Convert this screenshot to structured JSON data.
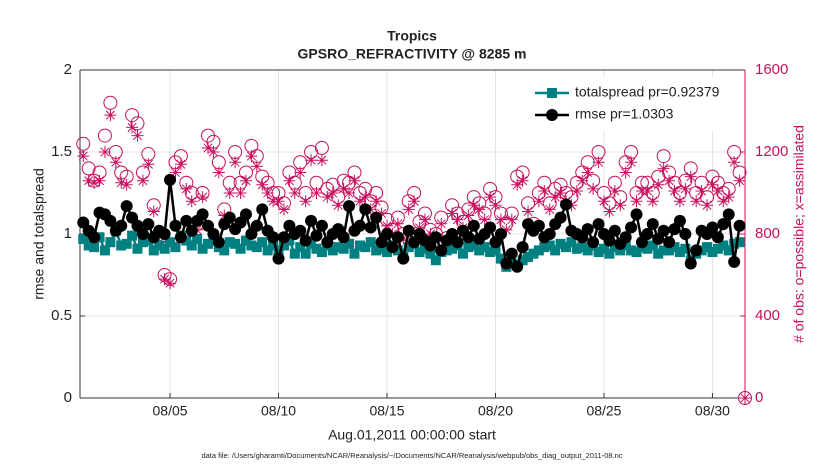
{
  "chart_data": {
    "type": "line",
    "title": "Tropics",
    "subtitle": "GPSRO_REFRACTIVITY @ 8285 m",
    "xlabel": "Aug.01,2011 00:00:00 start",
    "ylabel": "rmse and totalspread",
    "y2label": "# of obs: o=possible; x=assimilated",
    "footnote": "data file: /Users/gharamti/Documents/NCAR/Reanalysis/~/Documents/NCAR/Reanalysis/webpub/obs_diag_output_2011-08.nc",
    "xlim": [
      0.85,
      31.5
    ],
    "xticks": [
      {
        "value": 5,
        "label": "08/05"
      },
      {
        "value": 10,
        "label": "08/10"
      },
      {
        "value": 15,
        "label": "08/15"
      },
      {
        "value": 20,
        "label": "08/20"
      },
      {
        "value": 25,
        "label": "08/25"
      },
      {
        "value": 30,
        "label": "08/30"
      }
    ],
    "ylim": [
      0,
      2
    ],
    "yticks": [
      0,
      0.5,
      1,
      1.5,
      2
    ],
    "y2lim": [
      0,
      1600
    ],
    "y2ticks": [
      0,
      400,
      800,
      1200,
      1600
    ],
    "y2color": "#c8105e",
    "grid": true,
    "legend": "upper right",
    "x": [
      1,
      1.25,
      1.5,
      1.75,
      2,
      2.25,
      2.5,
      2.75,
      3,
      3.25,
      3.5,
      3.75,
      4,
      4.25,
      4.5,
      4.75,
      5,
      5.25,
      5.5,
      5.75,
      6,
      6.25,
      6.5,
      6.75,
      7,
      7.25,
      7.5,
      7.75,
      8,
      8.25,
      8.5,
      8.75,
      9,
      9.25,
      9.5,
      9.75,
      10,
      10.25,
      10.5,
      10.75,
      11,
      11.25,
      11.5,
      11.75,
      12,
      12.25,
      12.5,
      12.75,
      13,
      13.25,
      13.5,
      13.75,
      14,
      14.25,
      14.5,
      14.75,
      15,
      15.25,
      15.5,
      15.75,
      16,
      16.25,
      16.5,
      16.75,
      17,
      17.25,
      17.5,
      17.75,
      18,
      18.25,
      18.5,
      18.75,
      19,
      19.25,
      19.5,
      19.75,
      20,
      20.25,
      20.5,
      20.75,
      21,
      21.25,
      21.5,
      21.75,
      22,
      22.25,
      22.5,
      22.75,
      23,
      23.25,
      23.5,
      23.75,
      24,
      24.25,
      24.5,
      24.75,
      25,
      25.25,
      25.5,
      25.75,
      26,
      26.25,
      26.5,
      26.75,
      27,
      27.25,
      27.5,
      27.75,
      28,
      28.25,
      28.5,
      28.75,
      29,
      29.25,
      29.5,
      29.75,
      30,
      30.25,
      30.5,
      30.75,
      31,
      31.25,
      31.5
    ],
    "series": [
      {
        "marker": "open-circle",
        "line": false,
        "axis": "y2",
        "color": "#c8105e",
        "values": [
          1240,
          1120,
          1060,
          1100,
          1280,
          1440,
          1200,
          1100,
          1080,
          1380,
          1340,
          1100,
          1190,
          940,
          780,
          600,
          580,
          1150,
          1180,
          1050,
          1000,
          850,
          1000,
          1280,
          1250,
          1150,
          920,
          1050,
          1200,
          1050,
          1100,
          1230,
          1180,
          1080,
          1050,
          1000,
          1000,
          950,
          1100,
          1050,
          1150,
          1000,
          1200,
          1050,
          1220,
          1020,
          1040,
          980,
          1060,
          1050,
          1100,
          1000,
          1020,
          960,
          1000,
          930,
          870,
          820,
          880,
          800,
          960,
          1000,
          860,
          900,
          820,
          800,
          880,
          780,
          940,
          900,
          860,
          920,
          980,
          950,
          900,
          1020,
          980,
          900,
          850,
          900,
          1080,
          1100,
          950,
          850,
          1000,
          1050,
          950,
          1020,
          1040,
          1000,
          980,
          1050,
          1100,
          1150,
          1060,
          1200,
          1000,
          950,
          1050,
          980,
          1150,
          1200,
          1000,
          1050,
          1050,
          1000,
          1080,
          1180,
          1100,
          1050,
          1000,
          1060,
          1120,
          1000,
          1050,
          980,
          1080,
          1050,
          1000,
          1020,
          1200,
          1100,
          0
        ]
      },
      {
        "marker": "asterisk",
        "line": false,
        "axis": "y2",
        "color": "#c8105e",
        "values": [
          1180,
          1060,
          1050,
          1060,
          1200,
          1380,
          1150,
          1050,
          1040,
          1320,
          1280,
          1060,
          1140,
          910,
          760,
          580,
          560,
          1100,
          1140,
          1020,
          960,
          820,
          980,
          1220,
          1200,
          1100,
          890,
          1000,
          1150,
          1000,
          1060,
          1180,
          1130,
          1040,
          1000,
          960,
          960,
          920,
          1060,
          1000,
          1100,
          960,
          1160,
          1000,
          1160,
          980,
          1000,
          940,
          1020,
          1000,
          1060,
          960,
          980,
          920,
          960,
          900,
          840,
          800,
          850,
          780,
          920,
          960,
          830,
          870,
          800,
          780,
          850,
          760,
          900,
          870,
          830,
          890,
          940,
          920,
          870,
          980,
          940,
          870,
          820,
          870,
          1040,
          1060,
          910,
          820,
          960,
          1010,
          920,
          980,
          1000,
          960,
          940,
          1010,
          1060,
          1100,
          1020,
          1150,
          960,
          910,
          1010,
          940,
          1100,
          1150,
          960,
          1010,
          1010,
          960,
          1040,
          1120,
          1060,
          1010,
          960,
          1020,
          1080,
          960,
          1010,
          940,
          1040,
          1010,
          960,
          980,
          1150,
          1060,
          0
        ]
      },
      {
        "name": "totalspread pr=0.92379",
        "marker": "square",
        "line": true,
        "color": "#008080",
        "values": [
          0.97,
          0.93,
          0.92,
          0.98,
          0.9,
          0.95,
          1.02,
          0.93,
          0.94,
          0.99,
          0.91,
          0.95,
          0.96,
          0.9,
          0.93,
          0.91,
          0.95,
          0.92,
          0.99,
          0.96,
          0.93,
          0.97,
          0.91,
          0.94,
          0.96,
          0.92,
          0.9,
          0.95,
          0.94,
          0.91,
          0.96,
          0.93,
          0.92,
          0.95,
          0.9,
          0.93,
          0.9,
          0.93,
          0.96,
          0.88,
          0.92,
          0.88,
          0.94,
          0.91,
          0.89,
          0.93,
          0.9,
          0.92,
          0.91,
          0.94,
          0.88,
          0.93,
          0.92,
          0.95,
          0.9,
          0.91,
          0.89,
          0.93,
          0.9,
          0.88,
          0.92,
          0.94,
          0.89,
          0.91,
          0.88,
          0.84,
          0.89,
          0.9,
          0.91,
          0.93,
          0.88,
          0.92,
          0.93,
          0.9,
          0.92,
          0.89,
          0.9,
          0.85,
          0.8,
          0.82,
          0.81,
          0.84,
          0.86,
          0.88,
          0.9,
          0.92,
          0.93,
          0.9,
          0.94,
          0.92,
          0.95,
          0.91,
          0.92,
          0.9,
          0.93,
          0.89,
          0.91,
          0.88,
          0.92,
          0.9,
          0.93,
          0.9,
          0.89,
          0.92,
          0.91,
          0.93,
          0.88,
          0.9,
          0.9,
          0.92,
          0.89,
          0.91,
          0.84,
          0.88,
          0.9,
          0.92,
          0.89,
          0.91,
          0.93,
          0.9,
          0.94,
          0.95,
          null
        ]
      },
      {
        "name": "rmse pr=1.0303",
        "marker": "circle",
        "line": true,
        "color": "#000000",
        "values": [
          1.07,
          1.02,
          0.98,
          1.13,
          1.12,
          1.08,
          1.02,
          1.05,
          1.17,
          1.1,
          1.05,
          1.0,
          1.06,
          0.98,
          1.02,
          1.0,
          1.33,
          1.05,
          0.98,
          1.08,
          1.02,
          1.08,
          1.12,
          1.05,
          1.0,
          0.95,
          1.06,
          1.1,
          1.03,
          1.07,
          1.12,
          1.0,
          1.05,
          1.15,
          1.02,
          0.98,
          0.85,
          0.98,
          1.05,
          1.0,
          1.02,
          0.96,
          1.08,
          0.99,
          1.05,
          0.95,
          1.0,
          1.03,
          0.98,
          1.17,
          1.02,
          1.05,
          1.15,
          1.04,
          1.1,
          0.95,
          1.0,
          0.92,
          0.98,
          0.85,
          1.02,
          0.95,
          1.0,
          0.96,
          0.93,
          0.98,
          0.9,
          0.96,
          1.0,
          0.95,
          1.02,
          0.98,
          1.05,
          0.97,
          1.0,
          1.04,
          0.95,
          1.0,
          0.82,
          0.88,
          0.8,
          0.92,
          1.06,
          1.02,
          1.05,
          0.98,
          1.0,
          1.06,
          1.1,
          1.18,
          1.02,
          1.0,
          0.98,
          1.03,
          0.95,
          1.06,
          1.0,
          0.96,
          1.02,
          0.94,
          0.98,
          1.04,
          1.12,
          0.95,
          1.0,
          1.06,
          0.97,
          1.02,
          0.95,
          1.03,
          1.08,
          1.0,
          0.82,
          0.9,
          1.02,
          1.0,
          1.04,
          0.98,
          1.06,
          1.12,
          0.83,
          1.05,
          null
        ]
      }
    ]
  }
}
